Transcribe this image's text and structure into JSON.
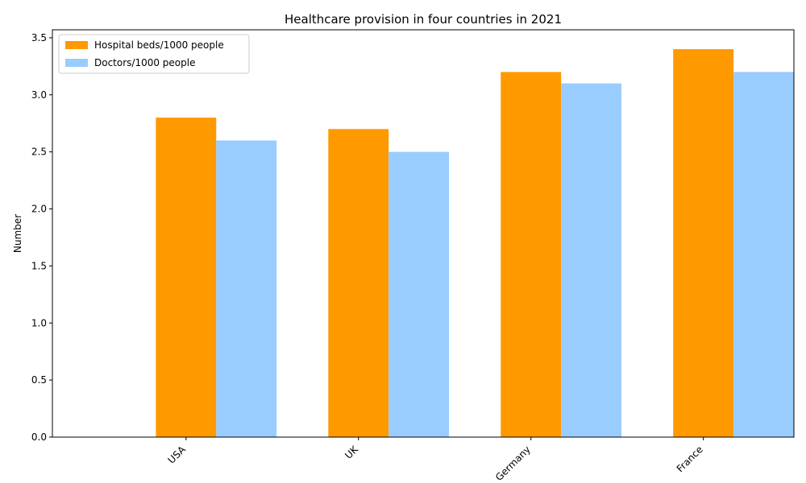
{
  "chart_data": {
    "type": "bar",
    "title": "Healthcare provision in four countries in 2021",
    "xlabel": "",
    "ylabel": "Number",
    "categories": [
      "USA",
      "UK",
      "Germany",
      "France"
    ],
    "series": [
      {
        "name": "Hospital beds/1000 people",
        "values": [
          2.8,
          2.7,
          3.2,
          3.4
        ],
        "color": "#ff9900"
      },
      {
        "name": "Doctors/1000 people",
        "values": [
          2.6,
          2.5,
          3.1,
          3.2
        ],
        "color": "#99ccff"
      }
    ],
    "ylim": [
      0,
      3.57
    ],
    "yticks": [
      "0.0",
      "0.5",
      "1.0",
      "1.5",
      "2.0",
      "2.5",
      "3.0",
      "3.5"
    ],
    "x_tick_rotation_deg": 45,
    "grid": false,
    "legend_position": "upper-left"
  }
}
